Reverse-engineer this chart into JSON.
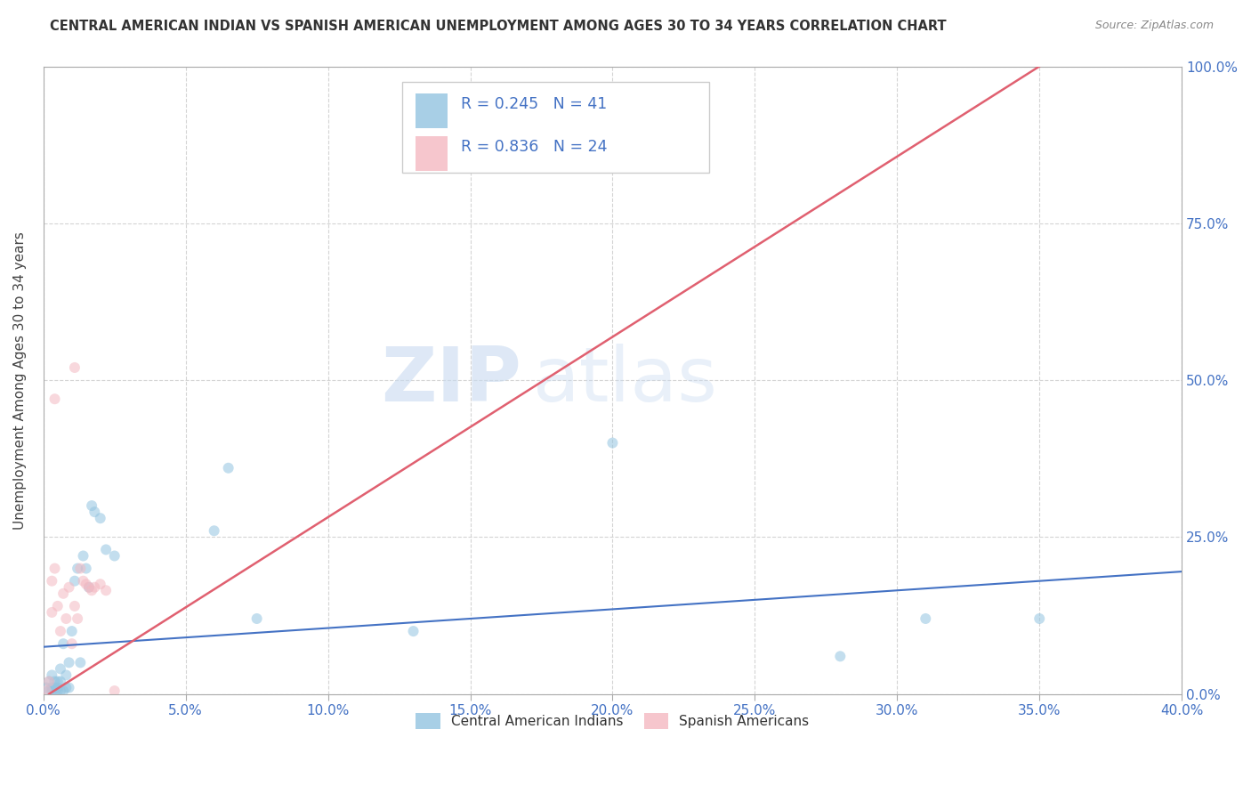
{
  "title": "CENTRAL AMERICAN INDIAN VS SPANISH AMERICAN UNEMPLOYMENT AMONG AGES 30 TO 34 YEARS CORRELATION CHART",
  "source": "Source: ZipAtlas.com",
  "xlabel_ticks": [
    "0.0%",
    "5.0%",
    "10.0%",
    "15.0%",
    "20.0%",
    "25.0%",
    "30.0%",
    "35.0%",
    "40.0%"
  ],
  "ylabel_ticks": [
    "0.0%",
    "25.0%",
    "50.0%",
    "75.0%",
    "100.0%"
  ],
  "ylabel_label": "Unemployment Among Ages 30 to 34 years",
  "xlim": [
    0.0,
    0.4
  ],
  "ylim": [
    0.0,
    1.0
  ],
  "watermark_zip": "ZIP",
  "watermark_atlas": "atlas",
  "legend_R1": "R = 0.245",
  "legend_N1": "N = 41",
  "legend_R2": "R = 0.836",
  "legend_N2": "N = 24",
  "blue_scatter_x": [
    0.001,
    0.002,
    0.002,
    0.003,
    0.003,
    0.003,
    0.004,
    0.004,
    0.004,
    0.005,
    0.005,
    0.005,
    0.006,
    0.006,
    0.006,
    0.007,
    0.007,
    0.008,
    0.008,
    0.009,
    0.009,
    0.01,
    0.011,
    0.012,
    0.013,
    0.014,
    0.015,
    0.016,
    0.017,
    0.018,
    0.02,
    0.022,
    0.025,
    0.065,
    0.13,
    0.2,
    0.28,
    0.31,
    0.35,
    0.06,
    0.075
  ],
  "blue_scatter_y": [
    0.01,
    0.005,
    0.02,
    0.005,
    0.01,
    0.03,
    0.005,
    0.01,
    0.02,
    0.005,
    0.01,
    0.02,
    0.005,
    0.02,
    0.04,
    0.005,
    0.08,
    0.01,
    0.03,
    0.01,
    0.05,
    0.1,
    0.18,
    0.2,
    0.05,
    0.22,
    0.2,
    0.17,
    0.3,
    0.29,
    0.28,
    0.23,
    0.22,
    0.36,
    0.1,
    0.4,
    0.06,
    0.12,
    0.12,
    0.26,
    0.12
  ],
  "pink_scatter_x": [
    0.001,
    0.002,
    0.003,
    0.003,
    0.004,
    0.004,
    0.005,
    0.006,
    0.007,
    0.008,
    0.009,
    0.01,
    0.011,
    0.011,
    0.012,
    0.013,
    0.014,
    0.015,
    0.016,
    0.017,
    0.018,
    0.02,
    0.022,
    0.025
  ],
  "pink_scatter_y": [
    0.005,
    0.02,
    0.13,
    0.18,
    0.2,
    0.47,
    0.14,
    0.1,
    0.16,
    0.12,
    0.17,
    0.08,
    0.14,
    0.52,
    0.12,
    0.2,
    0.18,
    0.175,
    0.17,
    0.165,
    0.17,
    0.175,
    0.165,
    0.005
  ],
  "blue_line_x": [
    0.0,
    0.4
  ],
  "blue_line_y": [
    0.075,
    0.195
  ],
  "pink_line_x": [
    0.002,
    0.35
  ],
  "pink_line_y": [
    0.0,
    1.0
  ],
  "blue_color": "#93c4e0",
  "pink_color": "#f4b8c1",
  "blue_line_color": "#4472c4",
  "pink_line_color": "#e06070",
  "scatter_size": 75,
  "scatter_alpha": 0.55,
  "grid_color": "#d0d0d0",
  "background_color": "#ffffff"
}
